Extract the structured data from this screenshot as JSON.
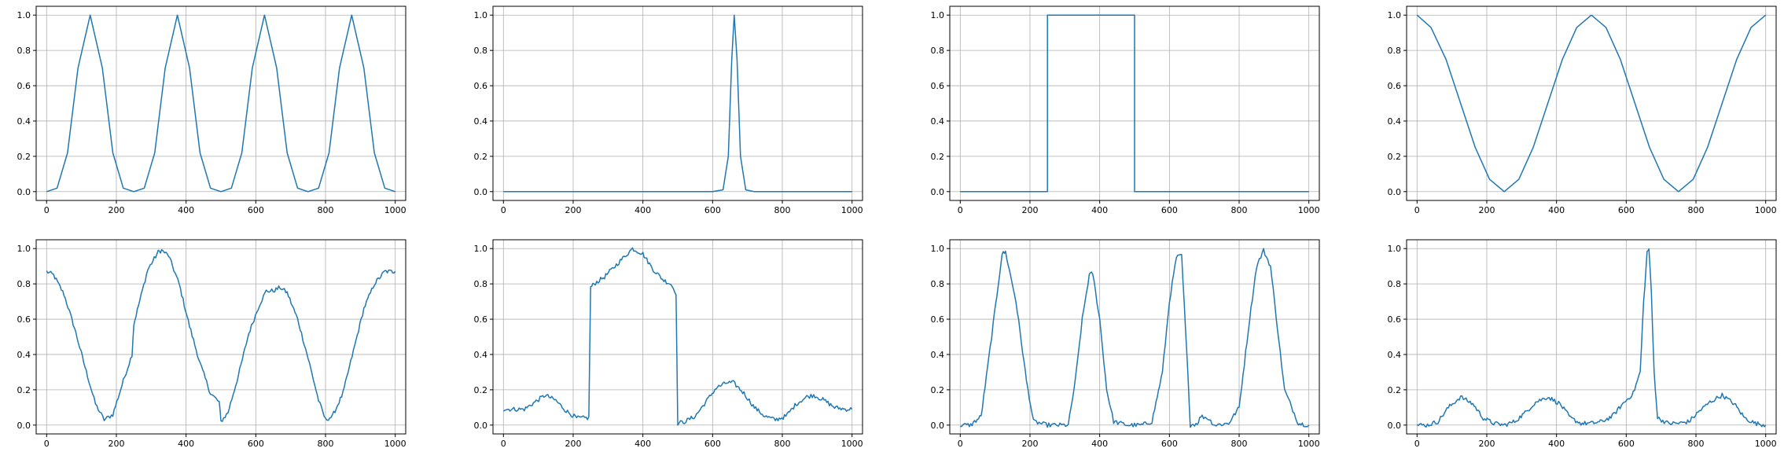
{
  "style": {
    "line_color": "#1f77b4",
    "grid_color": "#b0b0b0",
    "background": "#ffffff"
  },
  "chart_data": [
    {
      "type": "line",
      "grid": true,
      "xlim": [
        -30,
        1030
      ],
      "ylim": [
        -0.05,
        1.05
      ],
      "xticks": [
        0,
        200,
        400,
        600,
        800,
        1000
      ],
      "yticks": [
        0.0,
        0.2,
        0.4,
        0.6,
        0.8,
        1.0
      ],
      "description": "four narrow bumps",
      "series": [
        {
          "x": [
            0,
            30,
            60,
            90,
            125,
            160,
            190,
            220,
            250,
            280,
            310,
            340,
            375,
            410,
            440,
            470,
            500,
            530,
            560,
            590,
            625,
            660,
            690,
            720,
            750,
            780,
            810,
            840,
            875,
            910,
            940,
            970,
            1000
          ],
          "y": [
            0,
            0.02,
            0.22,
            0.7,
            1.0,
            0.7,
            0.22,
            0.02,
            0,
            0.02,
            0.22,
            0.7,
            1.0,
            0.7,
            0.22,
            0.02,
            0,
            0.02,
            0.22,
            0.7,
            1.0,
            0.7,
            0.22,
            0.02,
            0,
            0.02,
            0.22,
            0.7,
            1.0,
            0.7,
            0.22,
            0.02,
            0
          ]
        }
      ]
    },
    {
      "type": "line",
      "grid": true,
      "xlim": [
        -30,
        1030
      ],
      "ylim": [
        -0.05,
        1.05
      ],
      "xticks": [
        0,
        200,
        400,
        600,
        800,
        1000
      ],
      "yticks": [
        0.0,
        0.2,
        0.4,
        0.6,
        0.8,
        1.0
      ],
      "series": [
        {
          "x": [
            0,
            600,
            630,
            645,
            655,
            662,
            670,
            680,
            695,
            720,
            1000
          ],
          "y": [
            0,
            0,
            0.01,
            0.2,
            0.75,
            1.0,
            0.75,
            0.2,
            0.01,
            0,
            0
          ]
        }
      ]
    },
    {
      "type": "line",
      "grid": true,
      "xlim": [
        -30,
        1030
      ],
      "ylim": [
        -0.05,
        1.05
      ],
      "xticks": [
        0,
        200,
        400,
        600,
        800,
        1000
      ],
      "yticks": [
        0.0,
        0.2,
        0.4,
        0.6,
        0.8,
        1.0
      ],
      "series": [
        {
          "x": [
            0,
            250,
            250,
            500,
            500,
            1000
          ],
          "y": [
            0,
            0,
            1,
            1,
            0,
            0
          ]
        }
      ]
    },
    {
      "type": "line",
      "grid": true,
      "xlim": [
        -30,
        1030
      ],
      "ylim": [
        -0.05,
        1.05
      ],
      "xticks": [
        0,
        200,
        400,
        600,
        800,
        1000
      ],
      "yticks": [
        0.0,
        0.2,
        0.4,
        0.6,
        0.8,
        1.0
      ],
      "series": [
        {
          "x": [
            0,
            40,
            83,
            125,
            167,
            208,
            250,
            292,
            333,
            375,
            417,
            458,
            500,
            542,
            583,
            625,
            667,
            708,
            750,
            792,
            833,
            875,
            917,
            958,
            1000
          ],
          "y": [
            1,
            0.93,
            0.75,
            0.5,
            0.25,
            0.07,
            0,
            0.07,
            0.25,
            0.5,
            0.75,
            0.93,
            1,
            0.93,
            0.75,
            0.5,
            0.25,
            0.07,
            0,
            0.07,
            0.25,
            0.5,
            0.75,
            0.93,
            1
          ]
        }
      ]
    },
    {
      "type": "line",
      "grid": true,
      "noisy": true,
      "xlim": [
        -30,
        1030
      ],
      "ylim": [
        -0.05,
        1.05
      ],
      "xticks": [
        0,
        200,
        400,
        600,
        800,
        1000
      ],
      "yticks": [
        0.0,
        0.2,
        0.4,
        0.6,
        0.8,
        1.0
      ],
      "series": [
        {
          "x": [
            0,
            20,
            50,
            80,
            110,
            140,
            165,
            190,
            220,
            245,
            250,
            260,
            290,
            320,
            330,
            350,
            380,
            410,
            440,
            470,
            495,
            500,
            520,
            550,
            580,
            610,
            630,
            650,
            670,
            690,
            720,
            750,
            780,
            800,
            820,
            850,
            880,
            910,
            940,
            970,
            1000
          ],
          "y": [
            0.87,
            0.85,
            0.74,
            0.55,
            0.33,
            0.12,
            0.03,
            0.06,
            0.25,
            0.4,
            0.57,
            0.65,
            0.88,
            0.98,
            0.99,
            0.96,
            0.8,
            0.56,
            0.35,
            0.18,
            0.13,
            0.02,
            0.07,
            0.28,
            0.52,
            0.68,
            0.76,
            0.76,
            0.78,
            0.75,
            0.6,
            0.38,
            0.14,
            0.03,
            0.05,
            0.18,
            0.42,
            0.66,
            0.8,
            0.87,
            0.87
          ]
        }
      ]
    },
    {
      "type": "line",
      "grid": true,
      "noisy": true,
      "xlim": [
        -30,
        1030
      ],
      "ylim": [
        -0.05,
        1.05
      ],
      "xticks": [
        0,
        200,
        400,
        600,
        800,
        1000
      ],
      "yticks": [
        0.0,
        0.2,
        0.4,
        0.6,
        0.8,
        1.0
      ],
      "series": [
        {
          "x": [
            0,
            30,
            60,
            90,
            120,
            150,
            180,
            210,
            245,
            250,
            260,
            290,
            320,
            350,
            370,
            400,
            430,
            460,
            480,
            495,
            500,
            520,
            550,
            580,
            610,
            640,
            660,
            690,
            720,
            750,
            780,
            810,
            840,
            870,
            890,
            920,
            950,
            980,
            1000
          ],
          "y": [
            0.09,
            0.09,
            0.09,
            0.13,
            0.17,
            0.14,
            0.08,
            0.04,
            0.04,
            0.78,
            0.8,
            0.84,
            0.9,
            0.96,
            1.0,
            0.97,
            0.88,
            0.82,
            0.8,
            0.75,
            0.01,
            0.02,
            0.05,
            0.13,
            0.21,
            0.24,
            0.24,
            0.18,
            0.1,
            0.05,
            0.03,
            0.05,
            0.12,
            0.16,
            0.17,
            0.14,
            0.1,
            0.09,
            0.09
          ]
        }
      ]
    },
    {
      "type": "line",
      "grid": true,
      "noisy": true,
      "xlim": [
        -30,
        1030
      ],
      "ylim": [
        -0.05,
        1.05
      ],
      "xticks": [
        0,
        200,
        400,
        600,
        800,
        1000
      ],
      "yticks": [
        0.0,
        0.2,
        0.4,
        0.6,
        0.8,
        1.0
      ],
      "series": [
        {
          "x": [
            0,
            30,
            60,
            90,
            120,
            130,
            160,
            190,
            210,
            250,
            290,
            310,
            330,
            350,
            370,
            380,
            400,
            420,
            440,
            480,
            520,
            550,
            580,
            600,
            620,
            635,
            650,
            660,
            680,
            690,
            710,
            730,
            770,
            800,
            830,
            850,
            870,
            890,
            910,
            930,
            970,
            1000
          ],
          "y": [
            0,
            0,
            0.05,
            0.5,
            0.97,
            0.98,
            0.7,
            0.25,
            0.02,
            0,
            0,
            0,
            0.25,
            0.6,
            0.85,
            0.86,
            0.6,
            0.2,
            0.02,
            0,
            0,
            0.02,
            0.3,
            0.7,
            0.95,
            0.96,
            0.4,
            0,
            0.01,
            0.05,
            0.04,
            0,
            0.01,
            0.1,
            0.6,
            0.9,
            0.99,
            0.9,
            0.55,
            0.2,
            0.01,
            0
          ]
        }
      ]
    },
    {
      "type": "line",
      "grid": true,
      "noisy": true,
      "xlim": [
        -30,
        1030
      ],
      "ylim": [
        -0.05,
        1.05
      ],
      "xticks": [
        0,
        200,
        400,
        600,
        800,
        1000
      ],
      "yticks": [
        0.0,
        0.2,
        0.4,
        0.6,
        0.8,
        1.0
      ],
      "series": [
        {
          "x": [
            0,
            30,
            60,
            90,
            125,
            160,
            190,
            220,
            250,
            280,
            310,
            340,
            375,
            410,
            440,
            470,
            500,
            530,
            560,
            590,
            620,
            640,
            650,
            660,
            665,
            672,
            680,
            690,
            720,
            750,
            780,
            810,
            840,
            875,
            910,
            940,
            970,
            1000
          ],
          "y": [
            0,
            0,
            0.02,
            0.1,
            0.16,
            0.12,
            0.04,
            0.01,
            0,
            0.02,
            0.07,
            0.13,
            0.16,
            0.12,
            0.04,
            0.01,
            0.01,
            0.02,
            0.05,
            0.12,
            0.18,
            0.3,
            0.7,
            0.98,
            1.0,
            0.75,
            0.3,
            0.04,
            0.01,
            0.01,
            0.02,
            0.08,
            0.13,
            0.17,
            0.12,
            0.04,
            0.01,
            0
          ]
        }
      ]
    }
  ]
}
